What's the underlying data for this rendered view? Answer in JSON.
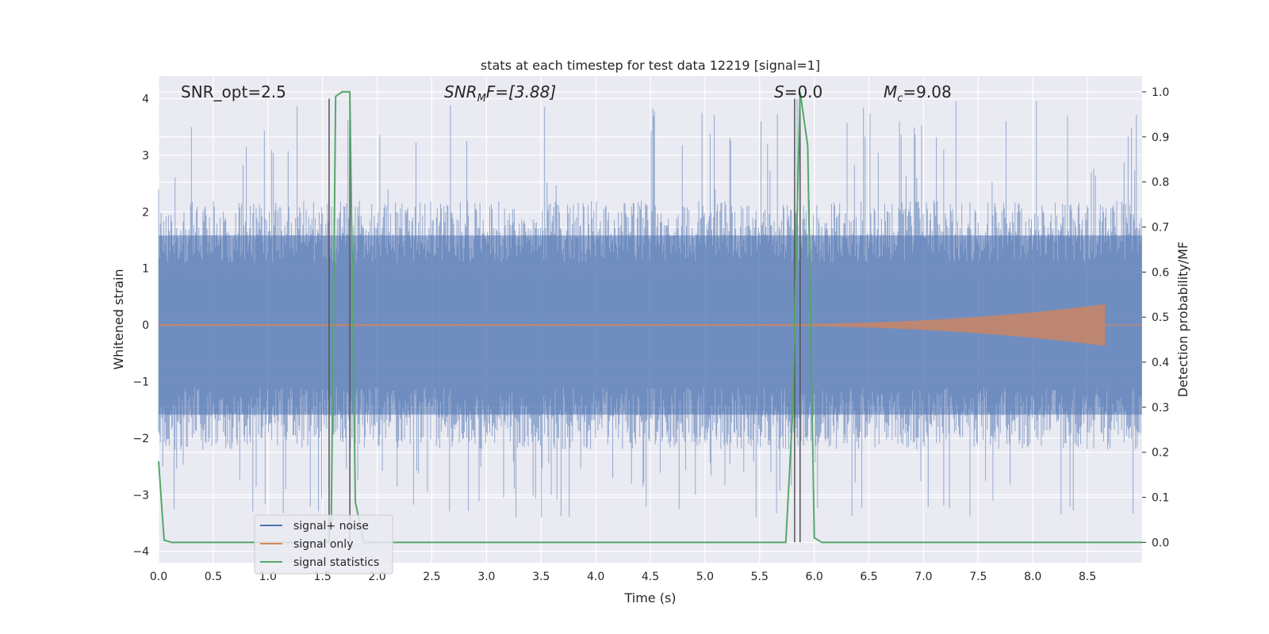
{
  "chart_data": {
    "type": "line",
    "title": "stats at each timestep for test data 12219 [signal=1]",
    "xlabel": "Time (s)",
    "ylabel_left": "Whitened strain",
    "ylabel_right": "Detection probability/MF",
    "xlim": [
      0.0,
      9.0
    ],
    "ylim_left": [
      -4.2,
      4.4
    ],
    "ylim_right": [
      -0.045,
      1.035
    ],
    "x_ticks": [
      0.0,
      0.5,
      1.0,
      1.5,
      2.0,
      2.5,
      3.0,
      3.5,
      4.0,
      4.5,
      5.0,
      5.5,
      6.0,
      6.5,
      7.0,
      7.5,
      8.0,
      8.5
    ],
    "x_tick_labels": [
      "0.0",
      "0.5",
      "1.0",
      "1.5",
      "2.0",
      "2.5",
      "3.0",
      "3.5",
      "4.0",
      "4.5",
      "5.0",
      "5.5",
      "6.0",
      "6.5",
      "7.0",
      "7.5",
      "8.0",
      "8.5"
    ],
    "y_ticks_left": [
      -4,
      -3,
      -2,
      -1,
      0,
      1,
      2,
      3,
      4
    ],
    "y_tick_labels_left": [
      "−4",
      "−3",
      "−2",
      "−1",
      "0",
      "1",
      "2",
      "3",
      "4"
    ],
    "y_ticks_right": [
      0.0,
      0.1,
      0.2,
      0.3,
      0.4,
      0.5,
      0.6,
      0.7,
      0.8,
      0.9,
      1.0
    ],
    "y_tick_labels_right": [
      "0.0",
      "0.1",
      "0.2",
      "0.3",
      "0.4",
      "0.5",
      "0.6",
      "0.7",
      "0.8",
      "0.9",
      "1.0"
    ],
    "grid": true,
    "legend_position": "lower-left",
    "annotations": {
      "snr_opt": "SNR_opt=2.5",
      "snr_mf_sym": "SNR",
      "snr_mf_sub": "M",
      "snr_mf_rest": "F=[3.88]",
      "s_sym": "S",
      "s_rest": "=0.0",
      "mc_sym": "M",
      "mc_sub": "c",
      "mc_rest": "=9.08"
    },
    "series": [
      {
        "name": "signal+ noise",
        "color": "#4c72b0",
        "description_kind": "dense noise",
        "x_range": [
          0.0,
          9.0
        ],
        "envelope": [
          -2.2,
          2.2
        ],
        "approx_max": 4.0,
        "approx_min": -3.4
      },
      {
        "name": "signal only",
        "color": "#dd8452",
        "description_kind": "chirp",
        "x_range": [
          0.0,
          8.66
        ],
        "amplitude_at_end": 0.35
      },
      {
        "name": "signal statistics",
        "color": "#55a868",
        "x": [
          0.0,
          0.05,
          0.12,
          1.55,
          1.58,
          1.62,
          1.68,
          1.75,
          1.8,
          1.88,
          5.74,
          5.8,
          5.87,
          5.94,
          6.0,
          6.07,
          9.0
        ],
        "y": [
          0.18,
          0.005,
          0.0,
          0.0,
          0.05,
          0.99,
          1.0,
          1.0,
          0.09,
          0.0,
          0.0,
          0.28,
          1.0,
          0.88,
          0.01,
          0.0,
          0.0
        ]
      }
    ],
    "vertical_lines": {
      "color": "#555555",
      "x": [
        1.56,
        1.75,
        5.82,
        5.87
      ]
    }
  }
}
